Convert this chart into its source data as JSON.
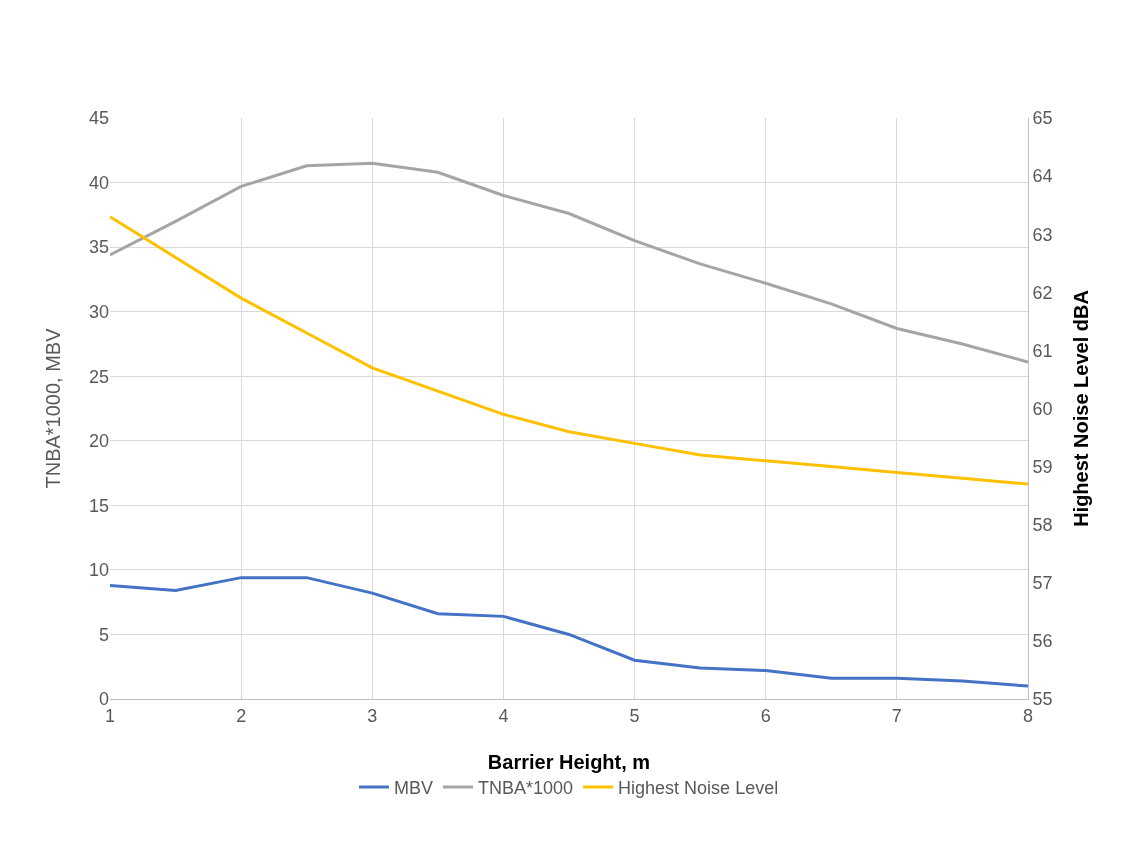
{
  "chart_data": {
    "type": "line",
    "xlabel": "Barrier Height, m",
    "ylabel": "TNBA*1000, MBV",
    "y2label": "Highest Noise Level dBA",
    "x": [
      1,
      1.5,
      2,
      2.5,
      3,
      3.5,
      4,
      4.5,
      5,
      5.5,
      6,
      6.5,
      7,
      7.5,
      8
    ],
    "series": [
      {
        "name": "MBV",
        "color": "#4472c4",
        "values": [
          8.8,
          8.4,
          9.4,
          9.4,
          8.2,
          6.6,
          6.4,
          5.0,
          3.0,
          2.4,
          2.2,
          1.6,
          1.6,
          1.4,
          1.0
        ]
      },
      {
        "name": "TNBA*1000",
        "color": "#a5a5a5",
        "values": [
          34.4,
          37.0,
          39.7,
          41.3,
          41.5,
          40.8,
          39.0,
          37.6,
          35.5,
          33.7,
          32.2,
          30.6,
          28.7,
          27.5,
          26.1
        ]
      },
      {
        "name": "Highest Noise Level",
        "color": "#ffc000",
        "axis": "y2",
        "values": [
          63.3,
          62.6,
          61.9,
          61.3,
          60.7,
          60.3,
          59.9,
          59.6,
          59.4,
          59.2,
          59.1,
          59.0,
          58.9,
          58.8,
          58.7
        ]
      }
    ],
    "xlim": [
      1,
      8
    ],
    "xticks": [
      1,
      2,
      3,
      4,
      5,
      6,
      7,
      8
    ],
    "ylim": [
      0,
      45
    ],
    "yticks": [
      0,
      5,
      10,
      15,
      20,
      25,
      30,
      35,
      40,
      45
    ],
    "y2lim": [
      55,
      65
    ],
    "y2ticks": [
      55,
      56,
      57,
      58,
      59,
      60,
      61,
      62,
      63,
      64,
      65
    ],
    "grid": true,
    "legend": "bottom",
    "marker": "none",
    "line_style": "solid"
  }
}
